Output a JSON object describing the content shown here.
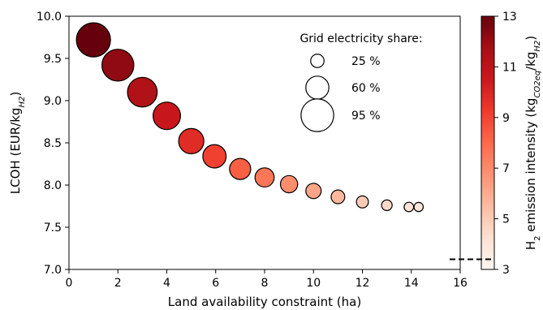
{
  "chart_data": {
    "type": "scatter",
    "xlabel": "Land availability constraint (ha)",
    "ylabel": "LCOH (EUR/kg",
    "ylabel_sub": "H2",
    "ylabel_end": ")",
    "xlim": [
      0,
      16
    ],
    "ylim": [
      7.0,
      10.0
    ],
    "xticks": [
      0,
      2,
      4,
      6,
      8,
      10,
      12,
      14,
      16
    ],
    "yticks": [
      7.0,
      7.5,
      8.0,
      8.5,
      9.0,
      9.5,
      10.0
    ],
    "points": [
      {
        "x": 1.0,
        "y": 9.72,
        "grid_share": 100,
        "emission": 13.0
      },
      {
        "x": 2.0,
        "y": 9.42,
        "grid_share": 92,
        "emission": 12.2
      },
      {
        "x": 3.0,
        "y": 9.1,
        "grid_share": 84,
        "emission": 11.4
      },
      {
        "x": 4.0,
        "y": 8.82,
        "grid_share": 76,
        "emission": 10.6
      },
      {
        "x": 5.0,
        "y": 8.52,
        "grid_share": 68,
        "emission": 9.8
      },
      {
        "x": 5.95,
        "y": 8.34,
        "grid_share": 61,
        "emission": 9.1
      },
      {
        "x": 7.0,
        "y": 8.19,
        "grid_share": 53,
        "emission": 8.3
      },
      {
        "x": 8.0,
        "y": 8.09,
        "grid_share": 46,
        "emission": 7.6
      },
      {
        "x": 9.0,
        "y": 8.01,
        "grid_share": 39,
        "emission": 6.9
      },
      {
        "x": 10.0,
        "y": 7.93,
        "grid_share": 32,
        "emission": 6.2
      },
      {
        "x": 11.0,
        "y": 7.86,
        "grid_share": 26,
        "emission": 5.6
      },
      {
        "x": 12.0,
        "y": 7.8,
        "grid_share": 20,
        "emission": 5.0
      },
      {
        "x": 13.0,
        "y": 7.76,
        "grid_share": 15,
        "emission": 4.5
      },
      {
        "x": 13.9,
        "y": 7.74,
        "grid_share": 11,
        "emission": 4.1
      },
      {
        "x": 14.3,
        "y": 7.74,
        "grid_share": 10,
        "emission": 4.0
      }
    ],
    "size_legend": {
      "title": "Grid electricity share:",
      "entries": [
        {
          "label": "25 %",
          "value": 25
        },
        {
          "label": "60 %",
          "value": 60
        },
        {
          "label": "95 %",
          "value": 95
        }
      ]
    },
    "colorbar": {
      "label_prefix": "H",
      "label_sub": "2",
      "label_mid": " emission intensity (kg",
      "label_sub2": "CO2eq",
      "label_mid2": "/kg",
      "label_sub3": "H2",
      "label_end": ")",
      "range": [
        3,
        13
      ],
      "ticks": [
        3,
        5,
        7,
        9,
        11,
        13
      ],
      "reference_value": 3.4,
      "colormap": "Reds",
      "color_low": "#fff5f0",
      "color_high": "#67000d"
    }
  }
}
